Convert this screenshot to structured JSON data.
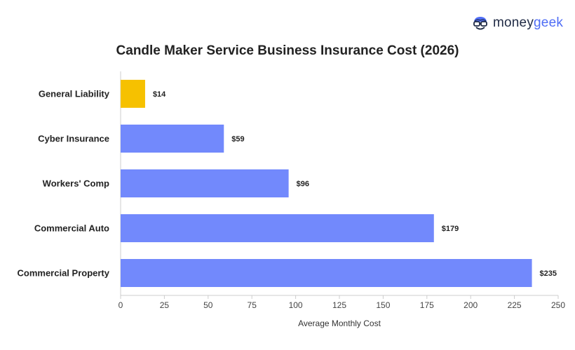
{
  "brand": {
    "word1": "money",
    "word2": "geek",
    "icon": "moneygeek-mascot-icon"
  },
  "chart_data": {
    "type": "bar",
    "orientation": "horizontal",
    "title": "Candle Maker Service Business Insurance Cost (2026)",
    "xlabel": "Average Monthly Cost",
    "ylabel": "",
    "categories": [
      "General Liability",
      "Cyber Insurance",
      "Workers' Comp",
      "Commercial Auto",
      "Commercial Property"
    ],
    "values": [
      14,
      59,
      96,
      179,
      235
    ],
    "value_labels": [
      "$14",
      "$59",
      "$96",
      "$179",
      "$235"
    ],
    "bar_colors": [
      "#f6c100",
      "#7289fc",
      "#7289fc",
      "#7289fc",
      "#7289fc"
    ],
    "xlim": [
      0,
      250
    ],
    "xticks": [
      0,
      25,
      50,
      75,
      100,
      125,
      150,
      175,
      200,
      225,
      250
    ],
    "grid": false,
    "legend": "none"
  }
}
